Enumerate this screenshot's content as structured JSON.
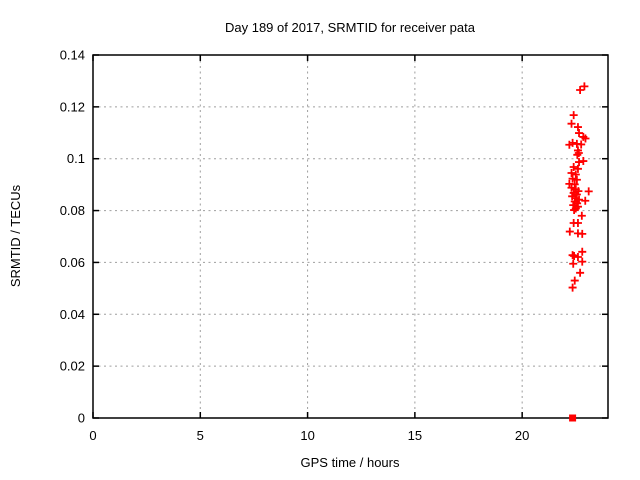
{
  "window": {
    "background": "#ffffff"
  },
  "chart_data": {
    "type": "scatter",
    "title": "Day 189 of 2017, SRMTID for receiver pata",
    "xlabel": "GPS time / hours",
    "ylabel": "SRMTID / TECUs",
    "xlim": [
      0,
      24
    ],
    "ylim": [
      0,
      0.14
    ],
    "xticks": [
      0,
      5,
      10,
      15,
      20
    ],
    "xtick_labels": [
      "0",
      "5",
      "10",
      "15",
      "20"
    ],
    "yticks": [
      0,
      0.02,
      0.04,
      0.06,
      0.08,
      0.1,
      0.12,
      0.14
    ],
    "ytick_labels": [
      "0",
      "0.02",
      "0.04",
      "0.06",
      "0.08",
      "0.1",
      "0.12",
      "0.14"
    ],
    "grid": {
      "visible": true,
      "style": "dashed",
      "color": "#9e9e9e"
    },
    "axis_color": "#000000",
    "legend_position": "none",
    "series": [
      {
        "name": "SRMTID",
        "marker": "plus",
        "color": "#ff0000",
        "points": [
          [
            22.7,
            0.1265
          ],
          [
            22.9,
            0.1279
          ],
          [
            22.4,
            0.1168
          ],
          [
            22.3,
            0.1135
          ],
          [
            22.6,
            0.1122
          ],
          [
            22.65,
            0.1099
          ],
          [
            22.85,
            0.1084
          ],
          [
            22.95,
            0.1078
          ],
          [
            22.35,
            0.1061
          ],
          [
            22.55,
            0.1057
          ],
          [
            22.2,
            0.1054
          ],
          [
            22.75,
            0.1055
          ],
          [
            22.6,
            0.1032
          ],
          [
            22.64,
            0.1022
          ],
          [
            22.57,
            0.1015
          ],
          [
            22.85,
            0.0991
          ],
          [
            22.65,
            0.0987
          ],
          [
            22.4,
            0.0968
          ],
          [
            22.6,
            0.0961
          ],
          [
            22.3,
            0.0945
          ],
          [
            22.5,
            0.0939
          ],
          [
            22.35,
            0.0923
          ],
          [
            22.55,
            0.0919
          ],
          [
            22.2,
            0.0903
          ],
          [
            22.45,
            0.0901
          ],
          [
            22.3,
            0.0888
          ],
          [
            22.5,
            0.0882
          ],
          [
            23.1,
            0.0874
          ],
          [
            22.62,
            0.0875
          ],
          [
            22.4,
            0.0868
          ],
          [
            22.55,
            0.0862
          ],
          [
            22.33,
            0.0855
          ],
          [
            22.48,
            0.0848
          ],
          [
            22.65,
            0.0842
          ],
          [
            22.94,
            0.0838
          ],
          [
            22.45,
            0.0835
          ],
          [
            22.56,
            0.0828
          ],
          [
            22.38,
            0.0821
          ],
          [
            22.6,
            0.0815
          ],
          [
            22.5,
            0.0808
          ],
          [
            22.42,
            0.0802
          ],
          [
            22.78,
            0.078
          ],
          [
            22.4,
            0.0752
          ],
          [
            22.6,
            0.0752
          ],
          [
            22.22,
            0.0719
          ],
          [
            22.6,
            0.0712
          ],
          [
            22.8,
            0.071
          ],
          [
            22.8,
            0.0641
          ],
          [
            22.35,
            0.0628
          ],
          [
            22.42,
            0.0625
          ],
          [
            22.6,
            0.0621
          ],
          [
            22.8,
            0.0603
          ],
          [
            22.38,
            0.0595
          ],
          [
            22.7,
            0.056
          ],
          [
            22.45,
            0.053
          ],
          [
            22.35,
            0.0503
          ]
        ]
      },
      {
        "name": "time-marker",
        "marker": "filled-square",
        "color": "#ff0000",
        "points": [
          [
            22.35,
            0.0
          ]
        ]
      }
    ]
  }
}
